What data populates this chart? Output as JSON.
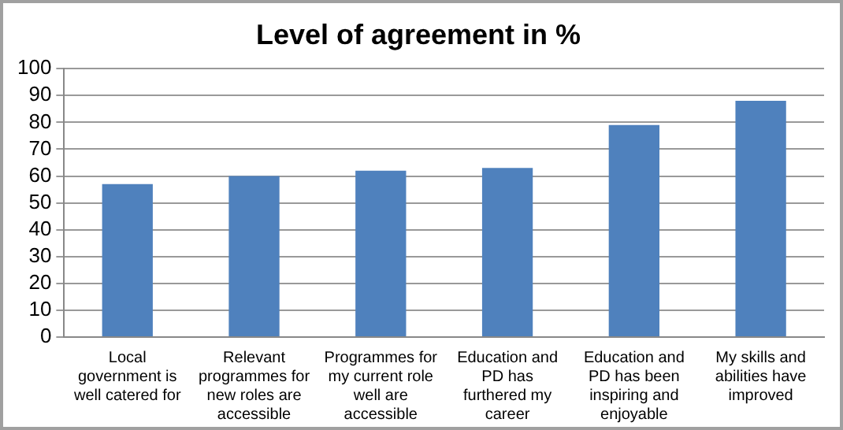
{
  "chart_data": {
    "type": "bar",
    "title": "Level of agreement in %",
    "categories": [
      "Local government is well catered for",
      "Relevant programmes for new roles are accessible",
      "Programmes for my current role well are accessible",
      "Education and PD has furthered my career",
      "Education and PD has been inspiring and enjoyable",
      "My skills and abilities have improved"
    ],
    "values": [
      57,
      60,
      62,
      63,
      79,
      88
    ],
    "color": "#4f81bd",
    "ylim": [
      0,
      100
    ],
    "yticks": [
      0,
      10,
      20,
      30,
      40,
      50,
      60,
      70,
      80,
      90,
      100
    ],
    "grid": "y"
  }
}
